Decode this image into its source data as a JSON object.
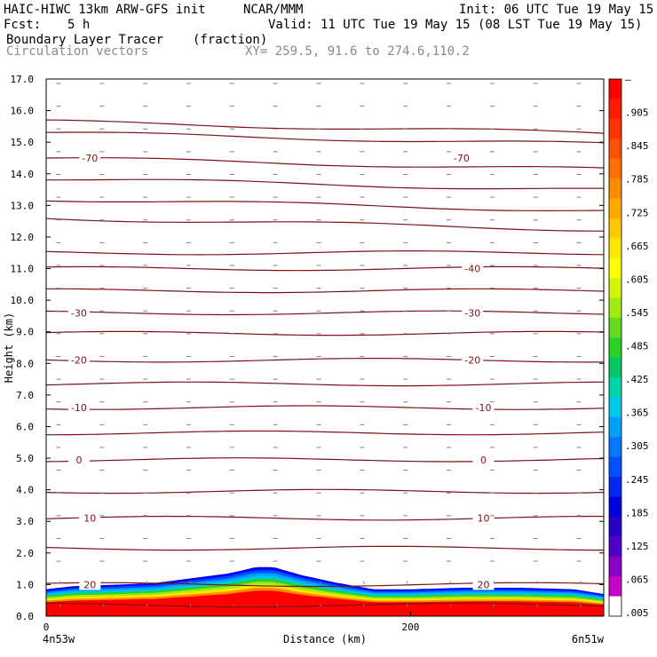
{
  "header": {
    "model": "HAIC-HIWC 13km ARW-GFS init",
    "org": "NCAR/MMM",
    "init": "Init: 06 UTC Tue 19 May 15",
    "fcst_label": "Fcst:",
    "fcst_value": "5 h",
    "valid": "Valid: 11 UTC Tue 19 May 15 (08 LST Tue 19 May 15)",
    "field": "Boundary Layer Tracer",
    "units": "(fraction)",
    "overlay": "Circulation vectors",
    "xy": "XY= 259.5, 91.6 to 274.6,110.2"
  },
  "chart_data": {
    "type": "cross-section",
    "xlabel": "Distance (km)",
    "ylabel": "Height (km)",
    "xlim": [
      0,
      306
    ],
    "ylim": [
      0,
      17
    ],
    "xticks": [
      {
        "v": 0,
        "label": "0"
      },
      {
        "v": 200,
        "label": "200"
      }
    ],
    "x_end_labels": {
      "left": "4n53w",
      "right": "6n51w"
    },
    "yticks": [
      "0.0",
      "1.0",
      "2.0",
      "3.0",
      "4.0",
      "5.0",
      "6.0",
      "7.0",
      "8.0",
      "9.0",
      "10.0",
      "11.0",
      "12.0",
      "13.0",
      "14.0",
      "15.0",
      "16.0",
      "17.0"
    ],
    "colorbar": {
      "labels": [
        "–",
        ".905",
        ".845",
        ".785",
        ".725",
        ".665",
        ".605",
        ".545",
        ".485",
        ".425",
        ".365",
        ".305",
        ".245",
        ".185",
        ".125",
        ".065",
        ".005"
      ],
      "colors": [
        "#ff0000",
        "#ff1a00",
        "#ff3300",
        "#ff5200",
        "#ff7000",
        "#ff8c00",
        "#ffaa00",
        "#ffc800",
        "#ffe600",
        "#ffff00",
        "#d2f50a",
        "#a0eb14",
        "#64dc1e",
        "#28d228",
        "#00c864",
        "#00d2aa",
        "#00c8e6",
        "#00a0ff",
        "#0078ff",
        "#0050ff",
        "#0028f0",
        "#0000dc",
        "#2800c8",
        "#5000c8",
        "#8c00c8",
        "#c800c8",
        "#ffffff"
      ]
    },
    "temperature_isotherms": [
      {
        "label": "-70",
        "y": 14.5
      },
      {
        "label": "-40",
        "y": 11.0
      },
      {
        "label": "-30",
        "y": 9.6
      },
      {
        "label": "-20",
        "y": 8.1
      },
      {
        "label": "-10",
        "y": 6.6
      },
      {
        "label": "0",
        "y": 4.95
      },
      {
        "label": "10",
        "y": 3.1
      },
      {
        "label": "20",
        "y": 1.0
      }
    ],
    "isotherm_label_positions": [
      {
        "label": "-70",
        "x": 24
      },
      {
        "label": "-70",
        "x": 228
      },
      {
        "label": "-40",
        "x": 234
      },
      {
        "label": "-30",
        "x": 18
      },
      {
        "label": "-30",
        "x": 234
      },
      {
        "label": "-20",
        "x": 18
      },
      {
        "label": "-20",
        "x": 234
      },
      {
        "label": "-10",
        "x": 18
      },
      {
        "label": "-10",
        "x": 240
      },
      {
        "label": "0",
        "x": 18
      },
      {
        "label": "0",
        "x": 240
      },
      {
        "label": "10",
        "x": 24
      },
      {
        "label": "10",
        "x": 240
      },
      {
        "label": "20",
        "x": 24
      },
      {
        "label": "20",
        "x": 240
      }
    ],
    "unlabeled_contours_km": [
      0.35,
      2.15,
      3.95,
      5.8,
      7.35,
      8.95,
      10.3,
      11.5,
      12.6,
      13.2,
      13.85,
      15.3,
      15.65
    ],
    "tracer_top_km": [
      {
        "x": 0,
        "y": 0.85
      },
      {
        "x": 15,
        "y": 0.95
      },
      {
        "x": 40,
        "y": 1.0
      },
      {
        "x": 60,
        "y": 1.05
      },
      {
        "x": 80,
        "y": 1.2
      },
      {
        "x": 100,
        "y": 1.35
      },
      {
        "x": 115,
        "y": 1.55
      },
      {
        "x": 125,
        "y": 1.55
      },
      {
        "x": 140,
        "y": 1.3
      },
      {
        "x": 160,
        "y": 1.05
      },
      {
        "x": 180,
        "y": 0.85
      },
      {
        "x": 200,
        "y": 0.85
      },
      {
        "x": 230,
        "y": 0.9
      },
      {
        "x": 260,
        "y": 0.9
      },
      {
        "x": 290,
        "y": 0.85
      },
      {
        "x": 306,
        "y": 0.7
      }
    ]
  }
}
